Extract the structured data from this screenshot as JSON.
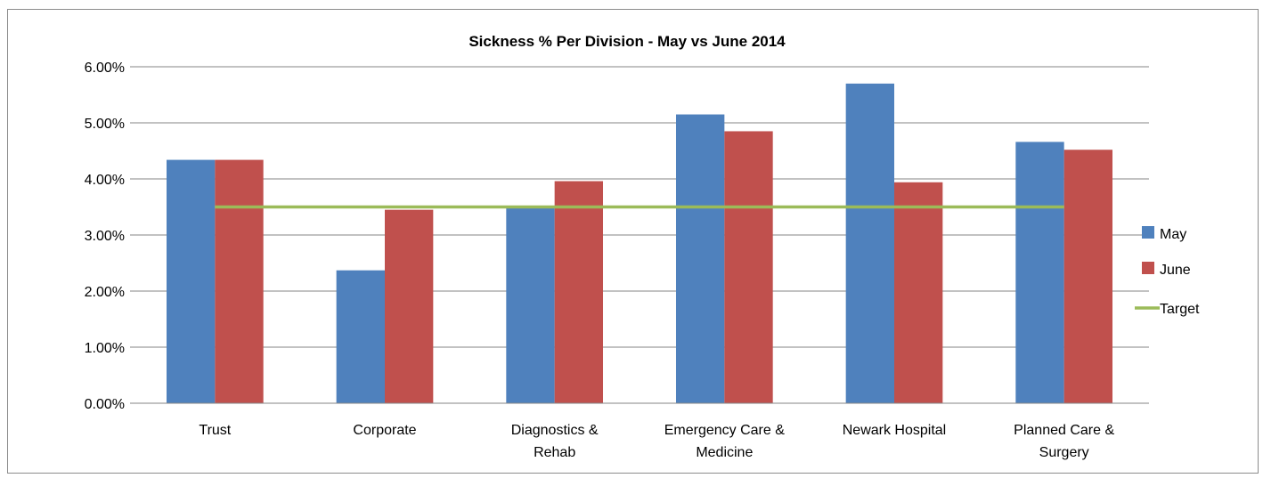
{
  "chart_data": {
    "type": "bar",
    "title": "Sickness % Per Division - May vs June 2014",
    "categories": [
      [
        "Trust"
      ],
      [
        "Corporate"
      ],
      [
        "Diagnostics &",
        "Rehab"
      ],
      [
        "Emergency Care &",
        "Medicine"
      ],
      [
        "Newark Hospital"
      ],
      [
        "Planned Care &",
        "Surgery"
      ]
    ],
    "series": [
      {
        "name": "May",
        "color": "#4f81bd",
        "values": [
          0.0434,
          0.0237,
          0.035,
          0.0515,
          0.057,
          0.0466
        ]
      },
      {
        "name": "June",
        "color": "#c0504d",
        "values": [
          0.0434,
          0.0345,
          0.0396,
          0.0485,
          0.0394,
          0.0452
        ]
      }
    ],
    "target": {
      "name": "Target",
      "color": "#9bbb59",
      "value": 0.035
    },
    "ylim": [
      0,
      0.06
    ],
    "yticks": [
      "0.00%",
      "1.00%",
      "2.00%",
      "3.00%",
      "4.00%",
      "5.00%",
      "6.00%"
    ],
    "ytick_values": [
      0,
      0.01,
      0.02,
      0.03,
      0.04,
      0.05,
      0.06
    ],
    "grid": true,
    "legend": "right"
  }
}
